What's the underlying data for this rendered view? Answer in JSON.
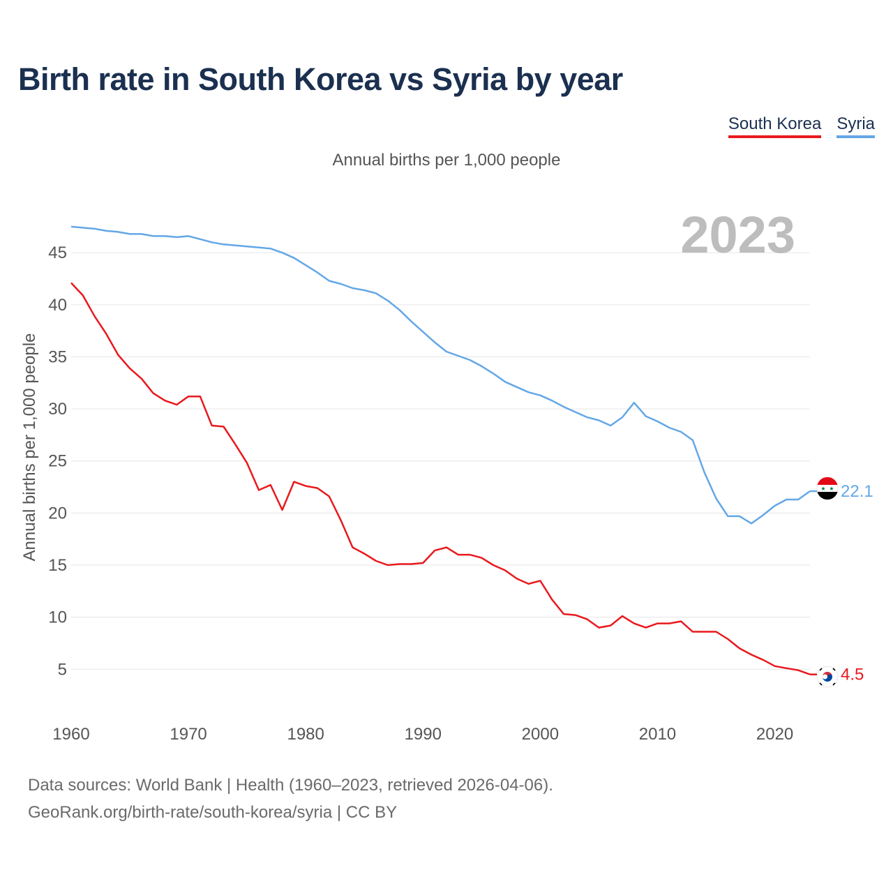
{
  "title": "Birth rate in South Korea vs Syria by year",
  "subtitle": "Annual births per 1,000 people",
  "year_badge": "2023",
  "legend": [
    {
      "label": "South Korea",
      "color": "#e8191d"
    },
    {
      "label": "Syria",
      "color": "#64a7e6"
    }
  ],
  "source": {
    "line1": "Data sources: World Bank | Health (1960–2023, retrieved 2026-04-06).",
    "line2": "GeoRank.org/birth-rate/south-korea/syria | CC BY"
  },
  "chart_data": {
    "type": "line",
    "title": "Birth rate in South Korea vs Syria by year",
    "xlabel": "",
    "ylabel": "Annual births per 1,000 people",
    "xlim": [
      1960,
      2023
    ],
    "ylim": [
      1.6,
      48.5
    ],
    "x_ticks": [
      1960,
      1970,
      1980,
      1990,
      2000,
      2010,
      2020
    ],
    "y_ticks": [
      5,
      10,
      15,
      20,
      25,
      30,
      35,
      40,
      45
    ],
    "grid": true,
    "legend_position": "top-right",
    "x": [
      1960,
      1961,
      1962,
      1963,
      1964,
      1965,
      1966,
      1967,
      1968,
      1969,
      1970,
      1971,
      1972,
      1973,
      1974,
      1975,
      1976,
      1977,
      1978,
      1979,
      1980,
      1981,
      1982,
      1983,
      1984,
      1985,
      1986,
      1987,
      1988,
      1989,
      1990,
      1991,
      1992,
      1993,
      1994,
      1995,
      1996,
      1997,
      1998,
      1999,
      2000,
      2001,
      2002,
      2003,
      2004,
      2005,
      2006,
      2007,
      2008,
      2009,
      2010,
      2011,
      2012,
      2013,
      2014,
      2015,
      2016,
      2017,
      2018,
      2019,
      2020,
      2021,
      2022,
      2023
    ],
    "series": [
      {
        "name": "South Korea",
        "color": "#e8191d",
        "end_label": "4.5",
        "values": [
          42.1,
          40.9,
          38.9,
          37.2,
          35.2,
          33.9,
          32.9,
          31.5,
          30.8,
          30.4,
          31.2,
          31.2,
          28.4,
          28.3,
          26.6,
          24.8,
          22.2,
          22.7,
          20.3,
          23.0,
          22.6,
          22.4,
          21.6,
          19.3,
          16.7,
          16.1,
          15.4,
          15.0,
          15.1,
          15.1,
          15.2,
          16.4,
          16.7,
          16.0,
          16.0,
          15.7,
          15.0,
          14.5,
          13.7,
          13.2,
          13.5,
          11.7,
          10.3,
          10.2,
          9.8,
          9.0,
          9.2,
          10.1,
          9.4,
          9.0,
          9.4,
          9.4,
          9.6,
          8.6,
          8.6,
          8.6,
          7.9,
          7.0,
          6.4,
          5.9,
          5.3,
          5.1,
          4.9,
          4.5
        ]
      },
      {
        "name": "Syria",
        "color": "#64a7e6",
        "end_label": "22.1",
        "values": [
          47.5,
          47.4,
          47.3,
          47.1,
          47.0,
          46.8,
          46.8,
          46.6,
          46.6,
          46.5,
          46.6,
          46.3,
          46.0,
          45.8,
          45.7,
          45.6,
          45.5,
          45.4,
          45.0,
          44.5,
          43.8,
          43.1,
          42.3,
          42.0,
          41.6,
          41.4,
          41.1,
          40.4,
          39.5,
          38.4,
          37.4,
          36.4,
          35.5,
          35.1,
          34.7,
          34.1,
          33.4,
          32.6,
          32.1,
          31.6,
          31.3,
          30.8,
          30.2,
          29.7,
          29.2,
          28.9,
          28.4,
          29.2,
          30.6,
          29.3,
          28.8,
          28.2,
          27.8,
          27.0,
          23.9,
          21.4,
          19.7,
          19.7,
          19.0,
          19.8,
          20.7,
          21.3,
          21.3,
          22.1
        ]
      }
    ]
  }
}
